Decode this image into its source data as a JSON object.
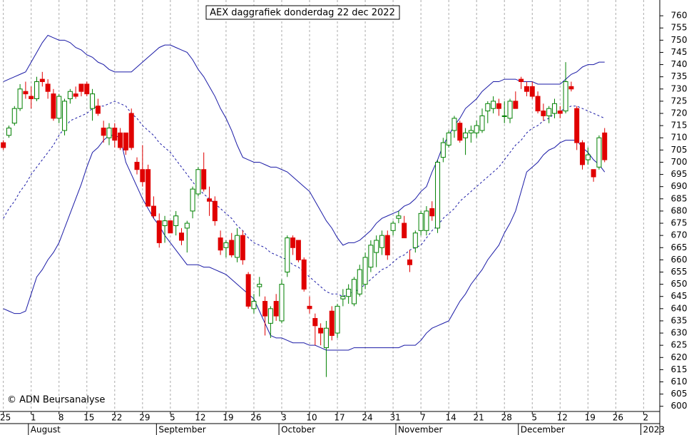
{
  "chart_data": {
    "type": "candlestick",
    "title": "AEX daggrafiek donderdag 22 dec 2022",
    "copyright": "© ADN Beursanalyse",
    "ylim": [
      597,
      765
    ],
    "yticks": [
      600,
      605,
      610,
      615,
      620,
      625,
      630,
      635,
      640,
      645,
      650,
      655,
      660,
      665,
      670,
      675,
      680,
      685,
      690,
      695,
      700,
      705,
      710,
      715,
      720,
      725,
      730,
      735,
      740,
      745,
      750,
      755,
      760
    ],
    "xlim": [
      -0.6,
      117.9
    ],
    "xticks": [
      {
        "value": 0,
        "label": "25"
      },
      {
        "value": 5,
        "label": "1"
      },
      {
        "value": 10,
        "label": "8"
      },
      {
        "value": 15,
        "label": "15"
      },
      {
        "value": 20,
        "label": "22"
      },
      {
        "value": 25,
        "label": "29"
      },
      {
        "value": 30,
        "label": "5"
      },
      {
        "value": 35,
        "label": "12"
      },
      {
        "value": 40,
        "label": "19"
      },
      {
        "value": 45,
        "label": "26"
      },
      {
        "value": 50,
        "label": "3"
      },
      {
        "value": 55,
        "label": "10"
      },
      {
        "value": 60,
        "label": "17"
      },
      {
        "value": 65,
        "label": "24"
      },
      {
        "value": 70,
        "label": "31"
      },
      {
        "value": 75,
        "label": "7"
      },
      {
        "value": 80,
        "label": "14"
      },
      {
        "value": 85,
        "label": "21"
      },
      {
        "value": 90,
        "label": "28"
      },
      {
        "value": 95,
        "label": "5"
      },
      {
        "value": 100,
        "label": "12"
      },
      {
        "value": 105,
        "label": "19"
      },
      {
        "value": 110,
        "label": "26"
      },
      {
        "value": 115,
        "label": "2"
      }
    ],
    "month_ticks": [
      {
        "value": 4.5,
        "label": "August"
      },
      {
        "value": 27.5,
        "label": "September"
      },
      {
        "value": 49.5,
        "label": "October"
      },
      {
        "value": 70.5,
        "label": "November"
      },
      {
        "value": 92.5,
        "label": "December"
      },
      {
        "value": 114.5,
        "label": "2023"
      }
    ],
    "grid": true,
    "up_color": "#008000",
    "down_color": "#e00000",
    "band_color": "#1a1aa6",
    "open": [
      708,
      711,
      716,
      722,
      729,
      727,
      726,
      734,
      732,
      728,
      718,
      713,
      726,
      728,
      732,
      732,
      722,
      723,
      714,
      710,
      714,
      712,
      712,
      720,
      700,
      697,
      697,
      682,
      676,
      674,
      676,
      674,
      671,
      673,
      680,
      687,
      697,
      685,
      684,
      669,
      665,
      668,
      661,
      670,
      654,
      640,
      649,
      643,
      634,
      643,
      635,
      655,
      669,
      668,
      660,
      641,
      636,
      632,
      624,
      639,
      630,
      644,
      645,
      642,
      646,
      650,
      657,
      663,
      665,
      670,
      672,
      677,
      675,
      660,
      665,
      672,
      672,
      681,
      673,
      702,
      707,
      713,
      716,
      710,
      712,
      712,
      713,
      721,
      722,
      724,
      719,
      718,
      725,
      734,
      731,
      731,
      727,
      721,
      719,
      720,
      721,
      721,
      731,
      722,
      708,
      701,
      697,
      698,
      712
    ],
    "high": [
      709,
      715,
      723,
      732,
      733,
      731,
      735,
      737,
      734,
      730,
      728,
      726,
      730,
      731,
      732,
      733,
      730,
      726,
      717,
      716,
      716,
      714,
      712,
      722,
      702,
      707,
      699,
      686,
      679,
      678,
      676,
      680,
      673,
      676,
      690,
      698,
      704,
      690,
      686,
      672,
      668,
      671,
      673,
      672,
      655,
      646,
      653,
      645,
      641,
      646,
      652,
      670,
      670,
      668,
      661,
      645,
      638,
      634,
      635,
      641,
      642,
      648,
      650,
      653,
      658,
      663,
      668,
      670,
      672,
      672,
      676,
      680,
      678,
      664,
      672,
      680,
      682,
      684,
      701,
      710,
      713,
      719,
      717,
      714,
      715,
      717,
      722,
      725,
      727,
      726,
      725,
      726,
      729,
      735,
      733,
      733,
      729,
      724,
      723,
      726,
      723,
      741,
      733,
      723,
      709,
      706,
      697,
      711,
      714
    ],
    "low": [
      705,
      710,
      715,
      721,
      726,
      722,
      725,
      731,
      726,
      717,
      716,
      711,
      724,
      726,
      727,
      727,
      717,
      719,
      708,
      707,
      706,
      705,
      703,
      705,
      695,
      690,
      682,
      677,
      665,
      667,
      671,
      670,
      666,
      663,
      677,
      686,
      688,
      678,
      674,
      662,
      661,
      661,
      659,
      658,
      640,
      638,
      645,
      629,
      628,
      635,
      634,
      653,
      662,
      659,
      647,
      638,
      625,
      625,
      612,
      627,
      628,
      641,
      642,
      641,
      645,
      648,
      655,
      657,
      662,
      660,
      670,
      675,
      669,
      655,
      663,
      670,
      670,
      676,
      671,
      700,
      706,
      710,
      708,
      703,
      708,
      710,
      712,
      716,
      720,
      719,
      716,
      716,
      722,
      730,
      727,
      726,
      720,
      717,
      716,
      718,
      718,
      720,
      729,
      705,
      697,
      699,
      692,
      697,
      700
    ],
    "close": [
      706,
      714,
      722,
      730,
      728,
      726,
      733,
      733,
      729,
      718,
      727,
      725,
      729,
      727,
      729,
      728,
      728,
      720,
      711,
      714,
      709,
      706,
      705,
      706,
      697,
      692,
      682,
      678,
      667,
      676,
      671,
      678,
      668,
      675,
      689,
      697,
      689,
      684,
      676,
      664,
      667,
      662,
      670,
      660,
      641,
      643,
      650,
      637,
      640,
      637,
      650,
      669,
      665,
      660,
      648,
      640,
      633,
      630,
      632,
      629,
      641,
      645,
      648,
      652,
      656,
      661,
      666,
      668,
      670,
      662,
      675,
      678,
      669,
      658,
      671,
      679,
      680,
      678,
      700,
      708,
      712,
      718,
      709,
      712,
      713,
      715,
      719,
      724,
      725,
      722,
      719,
      725,
      722,
      733,
      729,
      727,
      721,
      719,
      722,
      724,
      720,
      733,
      730,
      708,
      699,
      703,
      694,
      710,
      701
    ],
    "upper": [
      733,
      734,
      735,
      736,
      737,
      741,
      745,
      749,
      752,
      751,
      750,
      750,
      749,
      747,
      746,
      744,
      743,
      741,
      740,
      738,
      737,
      737,
      737,
      737,
      739,
      741,
      743,
      745,
      747,
      748,
      748,
      747,
      746,
      745,
      742,
      738,
      735,
      731,
      727,
      722,
      718,
      713,
      707,
      702,
      701,
      700,
      700,
      699,
      698,
      698,
      697,
      696,
      694,
      692,
      690,
      688,
      684,
      680,
      676,
      673,
      669,
      666,
      667,
      667,
      668,
      670,
      672,
      675,
      677,
      678,
      679,
      680,
      682,
      683,
      685,
      688,
      690,
      696,
      701,
      707,
      711,
      715,
      718,
      722,
      724,
      726,
      729,
      731,
      733,
      733,
      734,
      734,
      734,
      733,
      733,
      733,
      732,
      732,
      732,
      732,
      732,
      734,
      736,
      737,
      739,
      740,
      740,
      741,
      741
    ],
    "middle": [
      677,
      681,
      684,
      688,
      691,
      695,
      698,
      701,
      704,
      707,
      711,
      714,
      717,
      718,
      719,
      720,
      722,
      723,
      723,
      724,
      725,
      724,
      723,
      720,
      718,
      715,
      713,
      711,
      708,
      706,
      704,
      701,
      698,
      695,
      692,
      689,
      687,
      685,
      683,
      681,
      679,
      677,
      674,
      672,
      669,
      667,
      666,
      665,
      663,
      662,
      661,
      660,
      658,
      657,
      655,
      653,
      651,
      649,
      647,
      646,
      646,
      645,
      646,
      647,
      648,
      650,
      652,
      654,
      656,
      657,
      659,
      661,
      662,
      664,
      665,
      666,
      669,
      672,
      674,
      677,
      679,
      681,
      684,
      686,
      688,
      690,
      692,
      694,
      696,
      698,
      701,
      704,
      707,
      709,
      712,
      714,
      715,
      717,
      718,
      720,
      721,
      722,
      723,
      723,
      722,
      721,
      720,
      719,
      718
    ],
    "lower": [
      640,
      639,
      638,
      638,
      639,
      646,
      653,
      656,
      660,
      663,
      667,
      673,
      679,
      685,
      691,
      698,
      704,
      706,
      709,
      711,
      711,
      710,
      700,
      695,
      690,
      685,
      681,
      677,
      674,
      670,
      667,
      664,
      661,
      658,
      658,
      658,
      657,
      657,
      656,
      655,
      654,
      652,
      650,
      648,
      646,
      644,
      639,
      634,
      629,
      628,
      628,
      627,
      626,
      626,
      626,
      625,
      625,
      624,
      623,
      623,
      623,
      623,
      623,
      624,
      624,
      624,
      624,
      624,
      624,
      624,
      624,
      624,
      625,
      625,
      625,
      627,
      630,
      632,
      633,
      634,
      635,
      639,
      643,
      646,
      650,
      653,
      656,
      660,
      663,
      666,
      671,
      675,
      680,
      688,
      696,
      698,
      700,
      703,
      705,
      706,
      708,
      709,
      709,
      709,
      706,
      704,
      701,
      699,
      696
    ]
  }
}
